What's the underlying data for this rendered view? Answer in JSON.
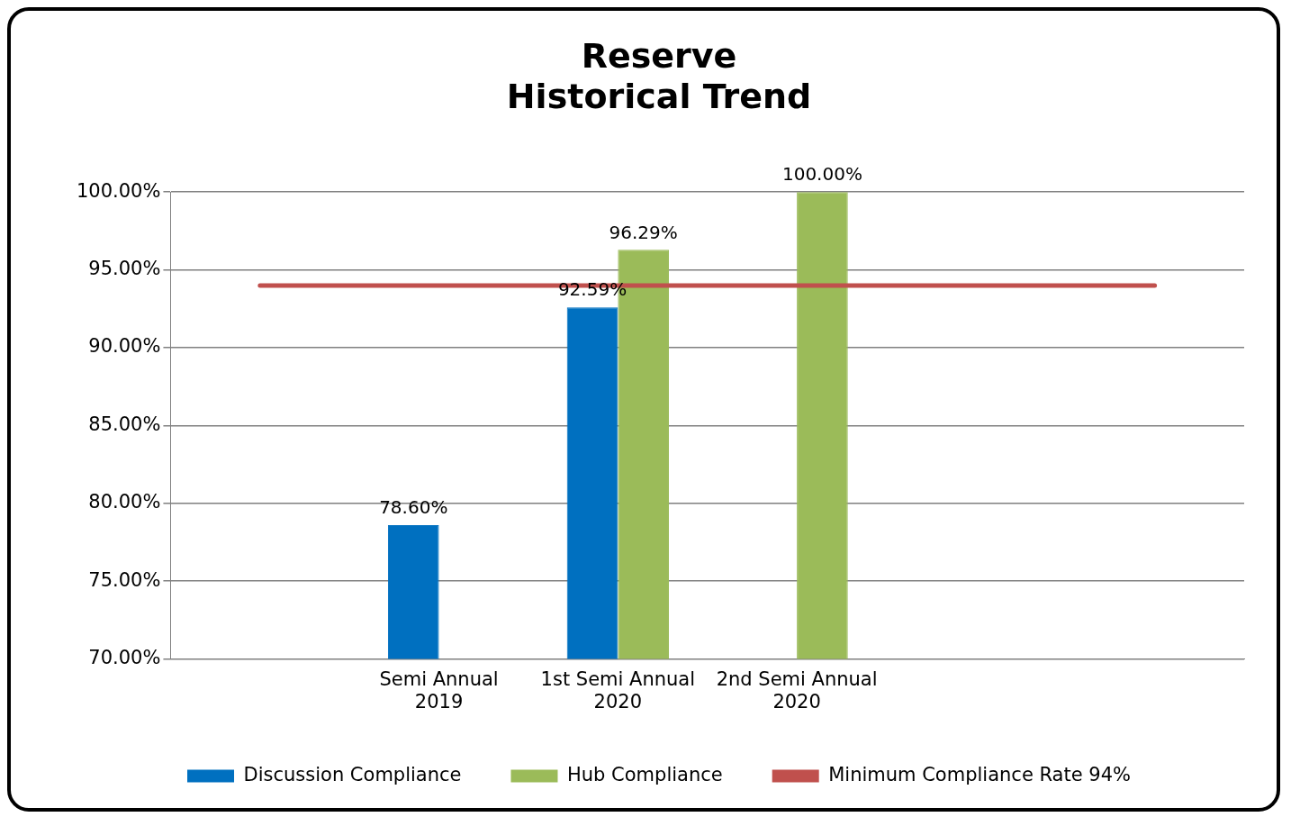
{
  "chart_data": {
    "type": "bar",
    "title": "Reserve\nHistorical Trend",
    "categories": [
      null,
      "Semi Annual 2019",
      "1st Semi Annual 2020",
      "2nd Semi Annual 2020",
      null,
      null
    ],
    "series": [
      {
        "name": "Discussion Compliance",
        "color": "#0070c0",
        "values": [
          null,
          78.6,
          92.59,
          null,
          null,
          null
        ],
        "value_labels": [
          null,
          "78.60%",
          "92.59%",
          null,
          null,
          null
        ]
      },
      {
        "name": "Hub Compliance",
        "color": "#9bbb59",
        "values": [
          null,
          null,
          96.29,
          100,
          null,
          null
        ],
        "value_labels": [
          null,
          null,
          "96.29%",
          "100.00%",
          null,
          null
        ]
      },
      {
        "name": "Minimum Compliance Rate 94%",
        "type": "line",
        "color": "#c0504d",
        "values": [
          94,
          94,
          94,
          94,
          94,
          94
        ]
      }
    ],
    "ylim": [
      70,
      100
    ],
    "yticks": [
      {
        "value": 70,
        "label": "70.00%"
      },
      {
        "value": 75,
        "label": "75.00%"
      },
      {
        "value": 80,
        "label": "80.00%"
      },
      {
        "value": 85,
        "label": "85.00%"
      },
      {
        "value": 90,
        "label": "90.00%"
      },
      {
        "value": 95,
        "label": "95.00%"
      },
      {
        "value": 100,
        "label": "100.00%"
      }
    ],
    "grid": "y",
    "legend": "bottom",
    "marker": "none",
    "line_style": "solid"
  }
}
